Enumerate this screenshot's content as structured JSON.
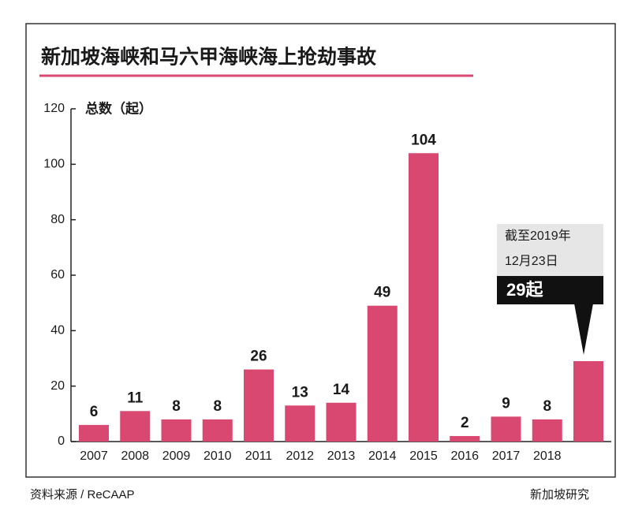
{
  "chart_data": {
    "type": "bar",
    "title": "新加坡海峡和马六甲海峡海上抢劫事故",
    "y_label": "总数（起）",
    "categories": [
      "2007",
      "2008",
      "2009",
      "2010",
      "2011",
      "2012",
      "2013",
      "2014",
      "2015",
      "2016",
      "2017",
      "2018",
      null
    ],
    "values": [
      6,
      11,
      8,
      8,
      26,
      13,
      14,
      49,
      104,
      2,
      9,
      8,
      29
    ],
    "value_labels": [
      "6",
      "11",
      "8",
      "8",
      "26",
      "13",
      "14",
      "49",
      "104",
      "2",
      "9",
      "8",
      "29起"
    ],
    "color": "#d84870",
    "ylim": [
      0,
      120
    ],
    "yticks": [
      0,
      20,
      40,
      60,
      80,
      100,
      120
    ],
    "grid": false,
    "annotation": [
      "截至2019年",
      "12月23日"
    ],
    "source": "资料来源 / ReCAAP",
    "watermark": "新加坡研究"
  }
}
